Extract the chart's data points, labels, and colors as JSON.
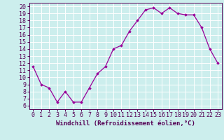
{
  "x": [
    0,
    1,
    2,
    3,
    4,
    5,
    6,
    7,
    8,
    9,
    10,
    11,
    12,
    13,
    14,
    15,
    16,
    17,
    18,
    19,
    20,
    21,
    22,
    23
  ],
  "y": [
    11.5,
    9.0,
    8.5,
    6.5,
    8.0,
    6.5,
    6.5,
    8.5,
    10.5,
    11.5,
    14.0,
    14.5,
    16.5,
    18.0,
    19.5,
    19.8,
    19.0,
    19.8,
    19.0,
    18.8,
    18.8,
    17.0,
    14.0,
    12.0
  ],
  "line_color": "#990099",
  "marker": "D",
  "marker_size": 1.8,
  "line_width": 0.9,
  "bg_color": "#cceeed",
  "grid_color": "#ffffff",
  "xlabel": "Windchill (Refroidissement éolien,°C)",
  "xlabel_fontsize": 6.5,
  "tick_fontsize": 6.0,
  "ylim": [
    5.5,
    20.5
  ],
  "xlim": [
    -0.5,
    23.5
  ],
  "yticks": [
    6,
    7,
    8,
    9,
    10,
    11,
    12,
    13,
    14,
    15,
    16,
    17,
    18,
    19,
    20
  ],
  "xticks": [
    0,
    1,
    2,
    3,
    4,
    5,
    6,
    7,
    8,
    9,
    10,
    11,
    12,
    13,
    14,
    15,
    16,
    17,
    18,
    19,
    20,
    21,
    22,
    23
  ]
}
